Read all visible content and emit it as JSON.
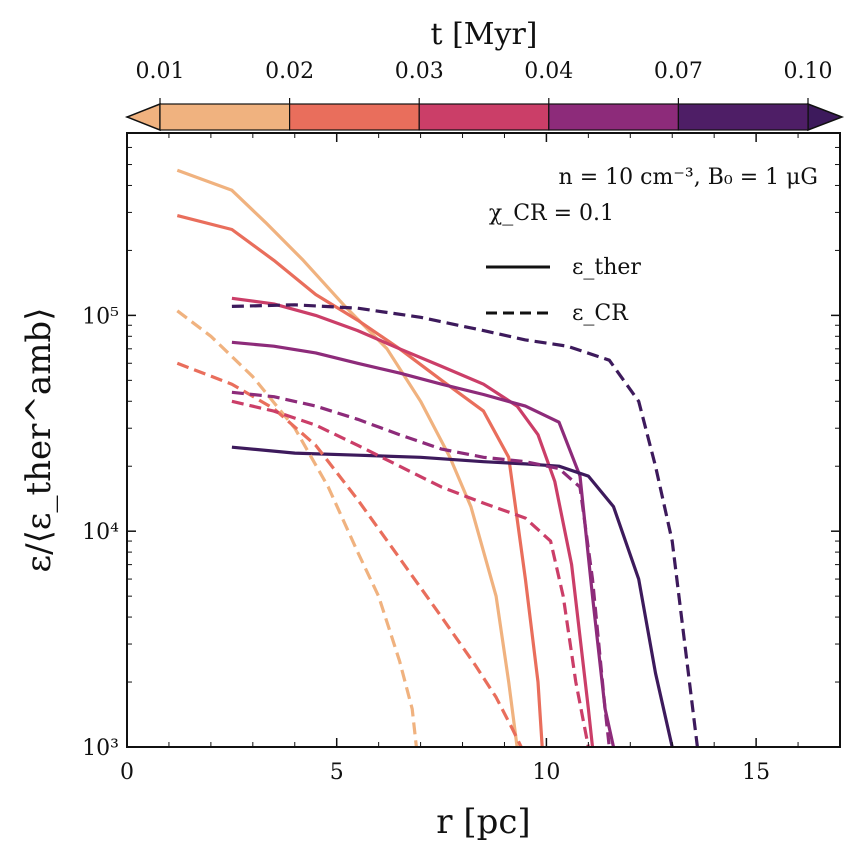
{
  "chart_data": {
    "type": "line",
    "xlabel": "r [pc]",
    "ylabel": "ε/⟨ε_ther^amb⟩",
    "xlim": [
      0,
      17
    ],
    "ylim": [
      1000,
      700000
    ],
    "yscale": "log",
    "x_ticks": [
      0,
      5,
      10,
      15
    ],
    "x_tick_labels": [
      "0",
      "5",
      "10",
      "15"
    ],
    "y_ticks": [
      1000,
      10000,
      100000
    ],
    "y_tick_labels": [
      "10³",
      "10⁴",
      "10⁵"
    ],
    "annotation_line1": "n = 10 cm⁻³, B₀ = 1 μG",
    "annotation_line2": "χ_CR = 0.1",
    "legend": {
      "placement": "top-right",
      "entries": [
        {
          "label": "ε_ther",
          "style": "solid"
        },
        {
          "label": "ε_CR",
          "style": "dashed"
        }
      ]
    },
    "colorbar": {
      "label": "t [Myr]",
      "placement": "top",
      "tick_labels": [
        "0.01",
        "0.02",
        "0.03",
        "0.04",
        "0.07",
        "0.10"
      ],
      "colors": [
        "#F0B27F",
        "#E96E5C",
        "#CB3E68",
        "#8D2B7A",
        "#4E1E66"
      ],
      "extend_left_color": "#F0B27F",
      "extend_right_color": "#3D1A5C"
    },
    "series": [
      {
        "t": 0.01,
        "quantity": "ε_ther",
        "color": "#F0B27F",
        "dash": false,
        "x": [
          1.2,
          2.5,
          3.3,
          4.2,
          5.2,
          6.2,
          7.0,
          7.7,
          8.2,
          8.8,
          9.1,
          9.3
        ],
        "y": [
          470000,
          380000,
          270000,
          180000,
          110000,
          70000,
          40000,
          22000,
          13000,
          5000,
          2000,
          1000
        ]
      },
      {
        "t": 0.02,
        "quantity": "ε_ther",
        "color": "#E96E5C",
        "dash": false,
        "x": [
          1.2,
          2.5,
          3.5,
          4.5,
          5.5,
          6.5,
          7.5,
          8.5,
          9.1,
          9.5,
          9.8,
          9.9
        ],
        "y": [
          290000,
          250000,
          180000,
          125000,
          95000,
          70000,
          50000,
          36000,
          22000,
          6000,
          2000,
          1000
        ]
      },
      {
        "t": 0.03,
        "quantity": "ε_ther",
        "color": "#CB3E68",
        "dash": false,
        "x": [
          2.5,
          3.5,
          4.5,
          5.5,
          6.5,
          7.5,
          8.5,
          9.3,
          9.8,
          10.2,
          10.6,
          11.0,
          11.1
        ],
        "y": [
          120000,
          113000,
          100000,
          85000,
          70000,
          58000,
          48000,
          38000,
          28000,
          17000,
          7000,
          1500,
          1000
        ]
      },
      {
        "t": 0.04,
        "quantity": "ε_ther",
        "color": "#8D2B7A",
        "dash": false,
        "x": [
          2.5,
          3.5,
          4.5,
          5.5,
          6.5,
          7.5,
          8.5,
          9.5,
          10.3,
          10.8,
          11.1,
          11.4,
          11.6
        ],
        "y": [
          75000,
          72000,
          67000,
          60000,
          54000,
          48000,
          43000,
          38000,
          32000,
          18000,
          5000,
          1500,
          1000
        ]
      },
      {
        "t": 0.07,
        "quantity": "ε_ther",
        "color": "#3D1A5C",
        "dash": false,
        "x": [
          2.5,
          4.0,
          5.5,
          7.0,
          8.5,
          9.5,
          10.3,
          11.0,
          11.6,
          12.2,
          12.6,
          13.0
        ],
        "y": [
          24500,
          23000,
          22500,
          22000,
          21000,
          20500,
          20000,
          18000,
          13000,
          6000,
          2200,
          1000
        ]
      },
      {
        "t": 0.01,
        "quantity": "ε_CR",
        "color": "#F0B27F",
        "dash": true,
        "x": [
          1.2,
          2.0,
          3.0,
          4.0,
          4.8,
          5.5,
          6.0,
          6.5,
          6.8,
          6.9
        ],
        "y": [
          105000,
          80000,
          52000,
          30000,
          16000,
          8000,
          5000,
          2500,
          1500,
          1000
        ]
      },
      {
        "t": 0.02,
        "quantity": "ε_CR",
        "color": "#E96E5C",
        "dash": true,
        "x": [
          1.2,
          2.5,
          3.5,
          4.5,
          5.5,
          6.5,
          7.5,
          8.3,
          8.8,
          9.2,
          9.4
        ],
        "y": [
          60000,
          48000,
          37000,
          25000,
          14000,
          7500,
          4000,
          2400,
          1700,
          1200,
          1000
        ]
      },
      {
        "t": 0.03,
        "quantity": "ε_CR",
        "color": "#CB3E68",
        "dash": true,
        "x": [
          2.5,
          3.5,
          4.5,
          5.5,
          6.5,
          7.5,
          8.5,
          9.5,
          10.1,
          10.4,
          10.7,
          11.0
        ],
        "y": [
          40000,
          36000,
          31000,
          25000,
          20000,
          16000,
          13500,
          11500,
          9000,
          5000,
          2000,
          1000
        ]
      },
      {
        "t": 0.04,
        "quantity": "ε_CR",
        "color": "#8D2B7A",
        "dash": true,
        "x": [
          2.5,
          3.5,
          4.5,
          5.5,
          6.5,
          7.5,
          8.5,
          9.5,
          10.3,
          10.8,
          11.1,
          11.4,
          11.5
        ],
        "y": [
          44000,
          42000,
          38000,
          33000,
          28000,
          24000,
          22000,
          21000,
          19500,
          16000,
          6000,
          1500,
          1000
        ]
      },
      {
        "t": 0.07,
        "quantity": "ε_CR",
        "color": "#3D1A5C",
        "dash": true,
        "x": [
          2.5,
          4.0,
          5.5,
          7.0,
          8.5,
          9.5,
          10.5,
          11.5,
          12.2,
          12.6,
          13.0,
          13.3,
          13.6
        ],
        "y": [
          110000,
          112000,
          108000,
          98000,
          85000,
          77000,
          72000,
          62000,
          40000,
          20000,
          9000,
          3000,
          1000
        ]
      }
    ]
  }
}
